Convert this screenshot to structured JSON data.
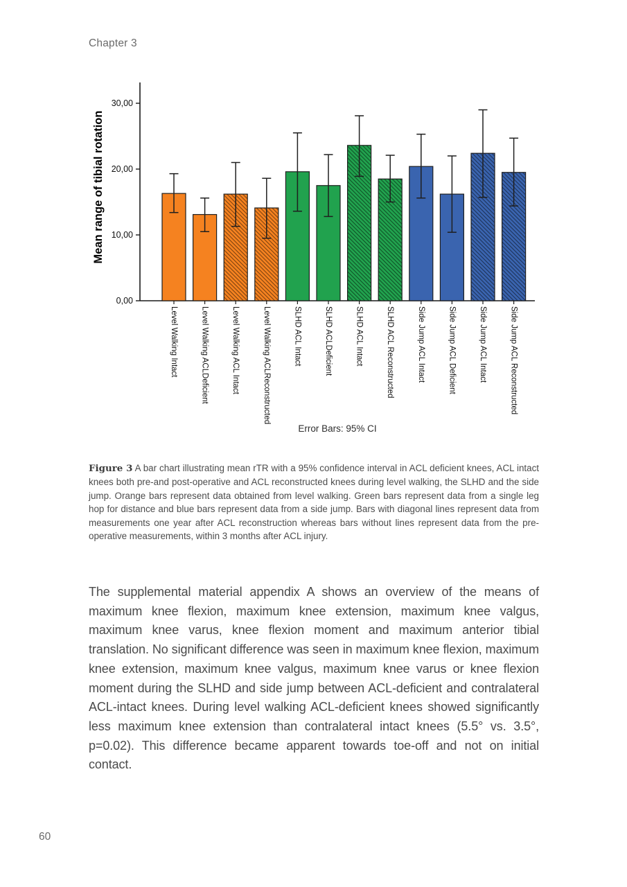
{
  "page": {
    "header": "Chapter 3",
    "page_number": "60"
  },
  "figure_caption": {
    "label": "Figure 3",
    "text": " A bar chart illustrating mean rTR with a 95% confidence interval in ACL deficient knees, ACL intact knees both pre-and post-operative and ACL reconstructed knees during level walking, the SLHD and the side jump. Orange bars represent data obtained from level walking. Green bars represent data from a single leg hop for distance and blue bars represent data from a side jump. Bars with diagonal lines represent data from measurements one year after ACL reconstruction whereas bars without lines represent data from the pre-operative measurements, within 3 months after ACL injury."
  },
  "body_paragraph": "The supplemental material appendix A shows an overview of the means of maximum knee flexion, maximum knee extension, maximum knee valgus, maximum knee varus, knee flexion moment and maximum anterior tibial translation. No significant difference was seen in maximum knee flexion, maximum knee extension, maximum knee valgus, maximum knee varus or knee flexion moment during the SLHD and side jump between ACL-deficient and contralateral ACL-intact knees. During level walking ACL-deficient knees showed significantly less maximum knee extension than contralateral intact knees (5.5° vs. 3.5°, p=0.02). This difference became apparent towards toe-off and not on initial contact.",
  "chart_data": {
    "type": "bar",
    "ylabel": "Mean range of tibial rotation",
    "footnote": "Error Bars: 95% CI",
    "ylim": [
      0,
      30
    ],
    "grid": false,
    "yticks": [
      {
        "value": 0,
        "label": "0,00"
      },
      {
        "value": 10,
        "label": "10,00"
      },
      {
        "value": 20,
        "label": "20,00"
      },
      {
        "value": 30,
        "label": "30,00"
      }
    ],
    "colors": {
      "orange": "#F58220",
      "green": "#21A24E",
      "blue": "#3A64AF"
    },
    "color_meaning": {
      "orange": "Level Walking",
      "green": "Single Leg Hop for Distance (SLHD)",
      "blue": "Side Jump",
      "hatched": "one year after ACL reconstruction",
      "solid": "pre-operative, within 3 months after ACL injury"
    },
    "bars": [
      {
        "label": "Level Walking Intact",
        "value": 16.3,
        "ci_low": 13.4,
        "ci_high": 19.3,
        "color": "orange",
        "hatched": false
      },
      {
        "label": "Level Walking ACLDeficient",
        "value": 13.1,
        "ci_low": 10.5,
        "ci_high": 15.6,
        "color": "orange",
        "hatched": false
      },
      {
        "label": "Level Walking ACL Intact",
        "value": 16.2,
        "ci_low": 11.3,
        "ci_high": 21.0,
        "color": "orange",
        "hatched": true
      },
      {
        "label": "Level Walking ACLReconstructed",
        "value": 14.1,
        "ci_low": 9.5,
        "ci_high": 18.6,
        "color": "orange",
        "hatched": true
      },
      {
        "label": "SLHD ACL Intact",
        "value": 19.6,
        "ci_low": 13.6,
        "ci_high": 25.5,
        "color": "green",
        "hatched": false
      },
      {
        "label": "SLHD ACLDeficient",
        "value": 17.5,
        "ci_low": 12.8,
        "ci_high": 22.2,
        "color": "green",
        "hatched": false
      },
      {
        "label": "SLHD ACL Intact",
        "value": 23.6,
        "ci_low": 18.9,
        "ci_high": 28.1,
        "color": "green",
        "hatched": true
      },
      {
        "label": "SLHD ACL Reconstructed",
        "value": 18.5,
        "ci_low": 15.0,
        "ci_high": 22.1,
        "color": "green",
        "hatched": true
      },
      {
        "label": "Side Jump ACL Intact",
        "value": 20.4,
        "ci_low": 15.6,
        "ci_high": 25.3,
        "color": "blue",
        "hatched": false
      },
      {
        "label": "Side Jump ACL Deficient",
        "value": 16.2,
        "ci_low": 10.4,
        "ci_high": 22.0,
        "color": "blue",
        "hatched": false
      },
      {
        "label": "Side Jump ACL Intact",
        "value": 22.4,
        "ci_low": 15.7,
        "ci_high": 29.0,
        "color": "blue",
        "hatched": true
      },
      {
        "label": "Side Jump ACL Reconstructed",
        "value": 19.5,
        "ci_low": 14.4,
        "ci_high": 24.7,
        "color": "blue",
        "hatched": true
      }
    ]
  }
}
